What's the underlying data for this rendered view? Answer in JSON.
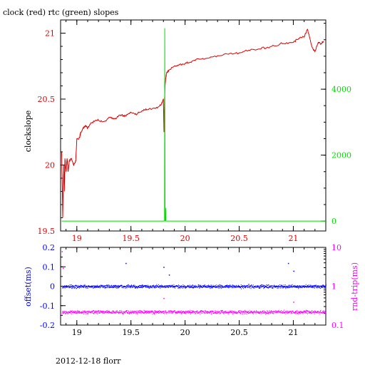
{
  "title": "clock (red) rtc (green) slopes",
  "footer": "2012-12-18 florr",
  "colors": {
    "clock": "#dd0000",
    "rtc": "#00dd00",
    "offset": "#0000ff",
    "rndtrip": "#ff00ff",
    "axis": "#000000"
  },
  "chart_data": [
    {
      "type": "line",
      "title": "clock (red) rtc (green) slopes",
      "xlabel": "",
      "ylabel": "clockslope",
      "y2label": "",
      "xlim": [
        18.85,
        21.3
      ],
      "ylim": [
        19.5,
        21.1
      ],
      "y2lim": [
        -300,
        6100
      ],
      "xticks": [
        19,
        19.5,
        20,
        20.5,
        21
      ],
      "xtick_labels": [
        "19",
        "19.5",
        "20",
        "20.5",
        "21"
      ],
      "yticks": [
        19.5,
        20,
        20.5,
        21
      ],
      "ytick_labels": [
        "19.5",
        "20",
        "20.5",
        "21"
      ],
      "y2ticks": [
        0,
        2000,
        4000
      ],
      "y2tick_labels": [
        "0",
        "2000",
        "4000"
      ],
      "grid": false,
      "series": [
        {
          "axis": "left",
          "color": "#dd0000",
          "x": [
            18.86,
            18.87,
            18.875,
            18.88,
            18.885,
            18.89,
            18.9,
            18.91,
            18.92,
            18.93,
            18.95,
            18.97,
            18.99,
            19.0,
            19.02,
            19.04,
            19.06,
            19.08,
            19.1,
            19.13,
            19.16,
            19.2,
            19.25,
            19.3,
            19.35,
            19.4,
            19.45,
            19.5,
            19.55,
            19.6,
            19.65,
            19.7,
            19.75,
            19.78,
            19.8,
            19.805,
            19.81,
            19.815,
            19.82,
            19.83,
            19.85,
            19.9,
            19.95,
            20.0,
            20.05,
            20.1,
            20.2,
            20.3,
            20.4,
            20.5,
            20.6,
            20.7,
            20.8,
            20.9,
            21.0,
            21.05,
            21.1,
            21.13,
            21.15,
            21.17,
            21.2,
            21.23,
            21.26,
            21.28
          ],
          "y": [
            20.1,
            19.6,
            19.85,
            20.0,
            19.8,
            20.05,
            19.95,
            20.05,
            19.95,
            20.03,
            20.05,
            20.0,
            20.03,
            20.2,
            20.2,
            20.25,
            20.28,
            20.3,
            20.28,
            20.32,
            20.33,
            20.34,
            20.33,
            20.36,
            20.35,
            20.38,
            20.37,
            20.4,
            20.38,
            20.41,
            20.42,
            20.43,
            20.44,
            20.46,
            20.5,
            20.25,
            20.5,
            20.6,
            20.65,
            20.7,
            20.72,
            20.75,
            20.76,
            20.77,
            20.78,
            20.8,
            20.81,
            20.83,
            20.84,
            20.85,
            20.87,
            20.88,
            20.9,
            20.92,
            20.93,
            20.96,
            20.97,
            21.03,
            20.97,
            20.9,
            20.86,
            20.93,
            20.92,
            20.94
          ]
        },
        {
          "axis": "right",
          "color": "#00dd00",
          "x": [
            18.86,
            19.81,
            19.812,
            19.815,
            19.82,
            19.822,
            21.3
          ],
          "y": [
            0,
            0,
            5850,
            0,
            400,
            0,
            0
          ]
        }
      ]
    },
    {
      "type": "scatter",
      "title": "",
      "xlabel": "",
      "ylabel": "offset(ms)",
      "y2label": "rnd-trip(ms)",
      "xlim": [
        18.85,
        21.3
      ],
      "ylim": [
        -0.2,
        0.2
      ],
      "y2lim": [
        0.1,
        10
      ],
      "y2scale": "log",
      "xticks": [
        19,
        19.5,
        20,
        20.5,
        21
      ],
      "xtick_labels": [
        "19",
        "19.5",
        "20",
        "20.5",
        "21"
      ],
      "yticks": [
        -0.2,
        -0.1,
        0,
        0.1,
        0.2
      ],
      "ytick_labels": [
        "-0.2",
        "-0.1",
        "0",
        "0.1",
        "0.2"
      ],
      "y2ticks": [
        0.1,
        1,
        10
      ],
      "y2tick_labels": [
        "0.1",
        "1",
        "10"
      ],
      "grid": false,
      "series": [
        {
          "axis": "left",
          "color": "#0000ff",
          "x": [
            18.86,
            19.0,
            19.2,
            19.4,
            19.6,
            19.8,
            20.0,
            20.2,
            20.4,
            20.6,
            20.8,
            21.0,
            21.3
          ],
          "y": [
            0.0,
            0.0,
            0.0,
            0.0,
            0.0,
            0.0,
            0.0,
            0.0,
            0.0,
            0.0,
            0.0,
            0.0,
            0.0
          ],
          "spread": 0.01,
          "outliers_x": [
            19.45,
            19.8,
            19.85,
            20.95,
            21.0
          ],
          "outliers_y": [
            0.12,
            0.1,
            0.06,
            0.12,
            0.08
          ]
        },
        {
          "axis": "right",
          "color": "#ff00ff",
          "x": [
            18.86,
            19.0,
            19.2,
            19.4,
            19.6,
            19.8,
            20.0,
            20.2,
            20.4,
            20.6,
            20.8,
            21.0,
            21.3
          ],
          "y": [
            0.22,
            0.22,
            0.22,
            0.22,
            0.22,
            0.22,
            0.22,
            0.22,
            0.22,
            0.22,
            0.22,
            0.22,
            0.22
          ],
          "spread": 0.02,
          "outliers_x": [
            18.86,
            18.87,
            19.8,
            21.0
          ],
          "outliers_y": [
            8.0,
            3.0,
            0.5,
            0.4
          ]
        }
      ]
    }
  ]
}
